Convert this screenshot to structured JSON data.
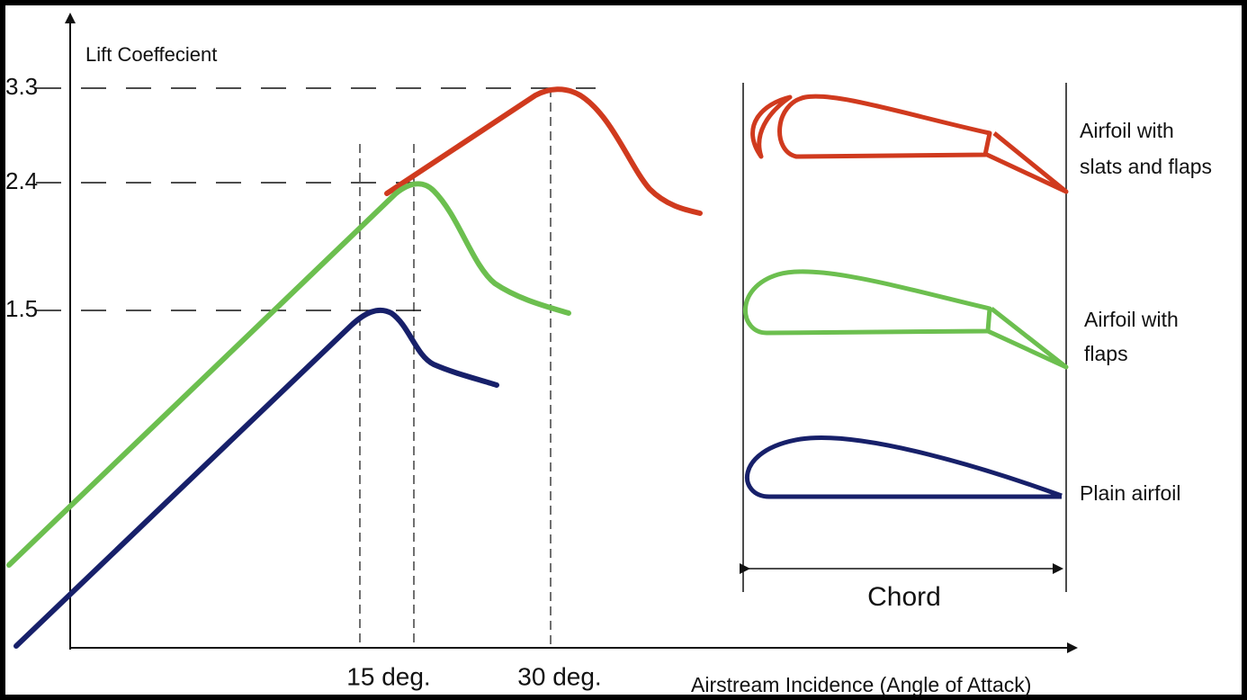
{
  "y_axis": {
    "label": "Lift Coeffecient",
    "ticks": [
      "3.3",
      "2.4",
      "1.5"
    ]
  },
  "x_axis": {
    "label": "Airstream Incidence (Angle of Attack)",
    "ticks": [
      "15 deg.",
      "30 deg."
    ]
  },
  "airfoils": [
    {
      "label_lines": [
        "Airfoil with",
        "slats and flaps"
      ]
    },
    {
      "label_lines": [
        "Airfoil with",
        "flaps"
      ]
    },
    {
      "label_lines": [
        "Plain airfoil"
      ]
    }
  ],
  "chord_label": "Chord"
}
